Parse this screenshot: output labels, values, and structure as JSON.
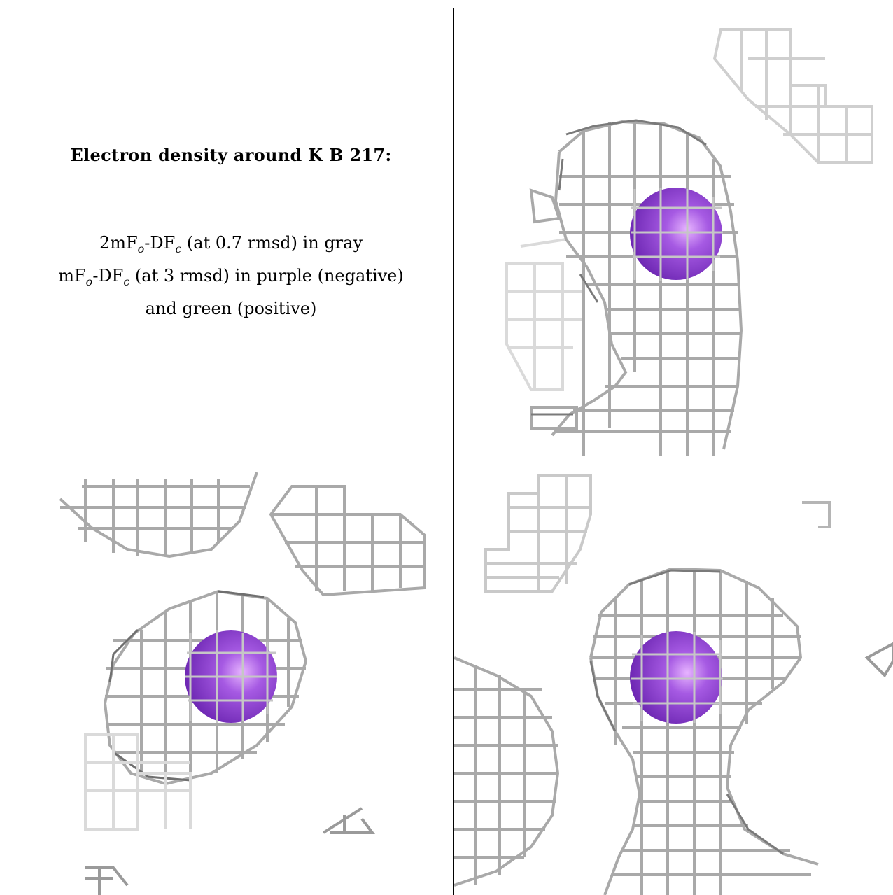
{
  "panel_text": {
    "title": "Electron density around K B 217:",
    "legend_line1": "2mFₒ-DF𝒸 (at 0.7 rmsd) in gray",
    "legend_line2": "mFₒ-DF𝒸 (at 3 rmsd) in purple (negative)",
    "legend_line3": "and green (positive)"
  },
  "colors": {
    "mesh_dark": "#7a7a7a",
    "mesh_mid": "#a8a8a8",
    "mesh_light": "#d6d6d6",
    "atom_purple": "#8e3fd1",
    "atom_highlight": "#e7b4ff"
  }
}
